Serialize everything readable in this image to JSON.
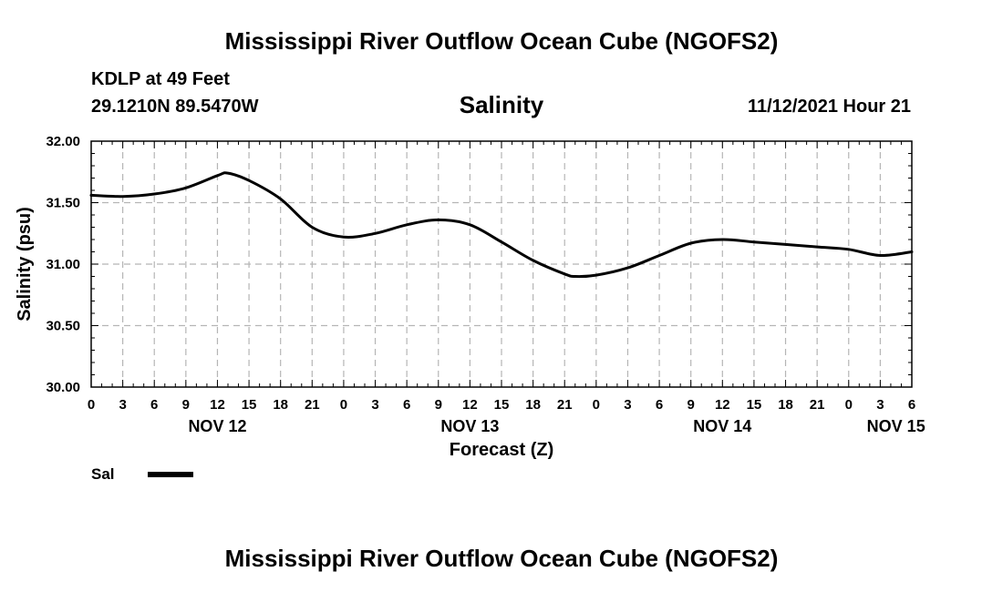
{
  "header": {
    "title": "Mississippi River Outflow Ocean Cube (NGOFS2)",
    "station": "KDLP at 49 Feet",
    "coords": "29.1210N  89.5470W",
    "run_time": "11/12/2021 Hour 21"
  },
  "footer": {
    "title": "Mississippi River Outflow Ocean Cube (NGOFS2)"
  },
  "chart_data": {
    "type": "line",
    "title": "Salinity",
    "xlabel": "Forecast (Z)",
    "ylabel": "Salinity (psu)",
    "ylim": [
      30.0,
      32.0
    ],
    "xlim_hours": [
      0,
      78
    ],
    "grid": true,
    "y_ticks": [
      "30.00",
      "30.50",
      "31.00",
      "31.50",
      "32.00"
    ],
    "x_tick_labels": [
      "0",
      "3",
      "6",
      "9",
      "12",
      "15",
      "18",
      "21",
      "0",
      "3",
      "6",
      "9",
      "12",
      "15",
      "18",
      "21",
      "0",
      "3",
      "6",
      "9",
      "12",
      "15",
      "18",
      "21",
      "0",
      "3",
      "6"
    ],
    "day_labels": [
      {
        "label": "NOV 12",
        "hour": 12
      },
      {
        "label": "NOV 13",
        "hour": 36
      },
      {
        "label": "NOV 14",
        "hour": 60
      },
      {
        "label": "NOV 15",
        "hour": 76.5
      }
    ],
    "series": [
      {
        "name": "Sal",
        "color": "#000000",
        "x": [
          0,
          3,
          6,
          9,
          12,
          13,
          15,
          18,
          21,
          24,
          27,
          30,
          33,
          36,
          39,
          42,
          45,
          46,
          48,
          51,
          54,
          57,
          60,
          63,
          66,
          69,
          72,
          75,
          78
        ],
        "y": [
          31.56,
          31.55,
          31.57,
          31.62,
          31.72,
          31.74,
          31.68,
          31.53,
          31.3,
          31.22,
          31.25,
          31.32,
          31.36,
          31.32,
          31.18,
          31.03,
          30.92,
          30.9,
          30.91,
          30.97,
          31.07,
          31.17,
          31.2,
          31.18,
          31.16,
          31.14,
          31.12,
          31.07,
          31.1
        ]
      }
    ],
    "legend": [
      {
        "label": "Sal",
        "color": "#000000"
      }
    ]
  }
}
